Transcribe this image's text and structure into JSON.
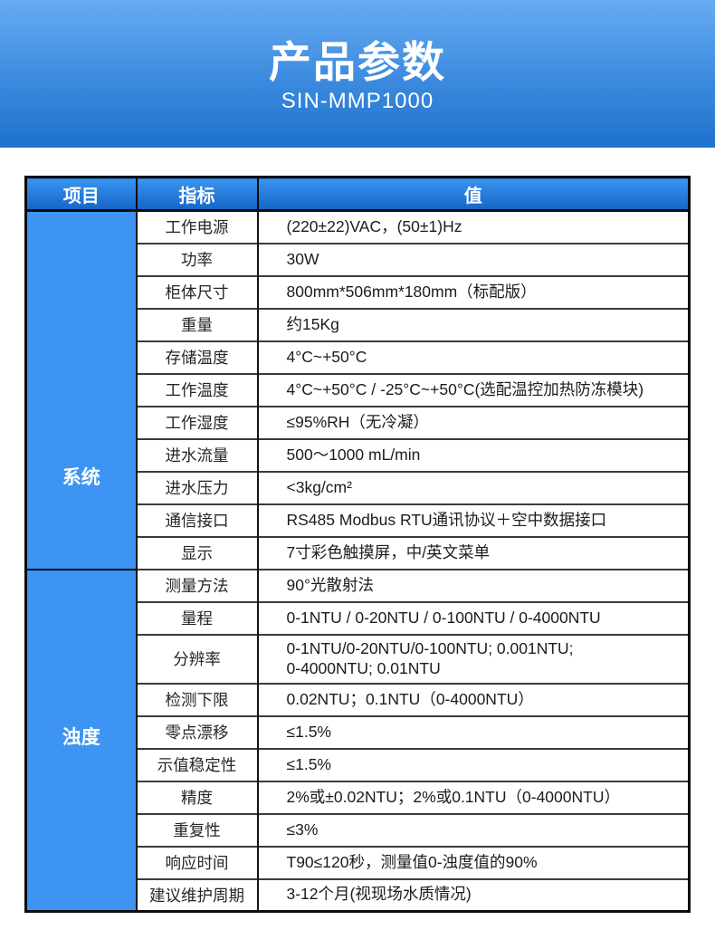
{
  "banner": {
    "title": "产品参数",
    "model": "SIN-MMP1000"
  },
  "table": {
    "headers": [
      "项目",
      "指标",
      "值"
    ],
    "sections": [
      {
        "key": "system",
        "name": "系统",
        "rows": [
          {
            "label": "工作电源",
            "value": "(220±22)VAC，(50±1)Hz"
          },
          {
            "label": "功率",
            "value": "30W"
          },
          {
            "label": "柜体尺寸",
            "value": "800mm*506mm*180mm（标配版）"
          },
          {
            "label": "重量",
            "value": "约15Kg"
          },
          {
            "label": "存储温度",
            "value": "4°C~+50°C"
          },
          {
            "label": "工作温度",
            "value": "4°C~+50°C / -25°C~+50°C(选配温控加热防冻模块)"
          },
          {
            "label": "工作湿度",
            "value": "≤95%RH（无冷凝）"
          },
          {
            "label": "进水流量",
            "value": "500～1000 mL/min"
          },
          {
            "label": "进水压力",
            "value": "<3kg/cm²"
          },
          {
            "label": "通信接口",
            "value": "RS485 Modbus RTU通讯协议＋空中数据接口"
          },
          {
            "label": "显示",
            "value": "7寸彩色触摸屏，中/英文菜单"
          }
        ]
      },
      {
        "key": "turbidity",
        "name": "浊度",
        "rows": [
          {
            "label": "测量方法",
            "value": "90°光散射法"
          },
          {
            "label": "量程",
            "value": "0-1NTU / 0-20NTU / 0-100NTU / 0-4000NTU"
          },
          {
            "label": "分辨率",
            "value": "0-1NTU/0-20NTU/0-100NTU; 0.001NTU;\n0-4000NTU; 0.01NTU"
          },
          {
            "label": "检测下限",
            "value": "0.02NTU；0.1NTU（0-4000NTU）"
          },
          {
            "label": "零点漂移",
            "value": "≤1.5%"
          },
          {
            "label": "示值稳定性",
            "value": "≤1.5%"
          },
          {
            "label": "精度",
            "value": "2%或±0.02NTU；2%或0.1NTU（0-4000NTU）"
          },
          {
            "label": "重复性",
            "value": "≤3%"
          },
          {
            "label": "响应时间",
            "value": "T90≤120秒，测量值0-浊度值的90%"
          },
          {
            "label": "建议维护周期",
            "value": "3-12个月(视现场水质情况)"
          }
        ]
      }
    ]
  },
  "colors": {
    "banner_top": "#66abf2",
    "banner_mid": "#3b8ade",
    "banner_bottom": "#1e72cd",
    "header_top": "#3a95f0",
    "header_bottom": "#1565c8",
    "section_cell": "#3d94f2",
    "border_dark": "#0c0c0c",
    "row_line": "#3b3b3b"
  }
}
